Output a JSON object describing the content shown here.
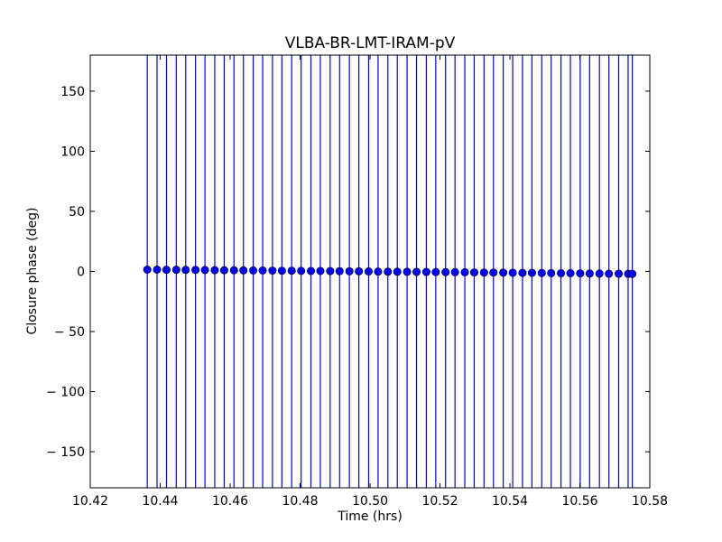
{
  "chart_data": {
    "type": "scatter",
    "title": "VLBA-BR-LMT-IRAM-pV",
    "xlabel": "Time (hrs)",
    "ylabel": "Closure phase (deg)",
    "xlim": [
      10.42,
      10.58
    ],
    "ylim": [
      -180,
      180
    ],
    "xticks": [
      10.42,
      10.44,
      10.46,
      10.48,
      10.5,
      10.52,
      10.54,
      10.56,
      10.58
    ],
    "xtick_labels": [
      "10.42",
      "10.44",
      "10.46",
      "10.48",
      "10.50",
      "10.52",
      "10.54",
      "10.56",
      "10.58"
    ],
    "yticks": [
      150,
      100,
      50,
      0,
      -50,
      -100,
      -150
    ],
    "ytick_labels": [
      "150",
      "100",
      "50",
      "0",
      "− 50",
      "− 100",
      "− 150"
    ],
    "grid": false,
    "marker_color": "#0000ff",
    "errorbar_color": "#0000ff",
    "error_extends_beyond_ylim": true,
    "x": [
      10.4363,
      10.4391,
      10.4418,
      10.4446,
      10.4473,
      10.4501,
      10.4528,
      10.4556,
      10.4583,
      10.4611,
      10.4638,
      10.4666,
      10.4693,
      10.4721,
      10.4748,
      10.4776,
      10.4803,
      10.4831,
      10.4858,
      10.4886,
      10.4913,
      10.4941,
      10.4968,
      10.4996,
      10.5023,
      10.5051,
      10.5078,
      10.5106,
      10.5133,
      10.5161,
      10.5188,
      10.5216,
      10.5243,
      10.5271,
      10.5298,
      10.5326,
      10.5353,
      10.5381,
      10.5408,
      10.5436,
      10.5463,
      10.5491,
      10.5518,
      10.5546,
      10.5573,
      10.5601,
      10.5628,
      10.5656,
      10.5683,
      10.5711,
      10.5738,
      10.575
    ],
    "y": [
      1.5,
      1.5,
      1.4,
      1.4,
      1.3,
      1.3,
      1.2,
      1.1,
      1.0,
      1.0,
      0.9,
      0.8,
      0.8,
      0.7,
      0.6,
      0.6,
      0.5,
      0.4,
      0.4,
      0.3,
      0.2,
      0.1,
      0.1,
      0.0,
      -0.1,
      -0.2,
      -0.2,
      -0.3,
      -0.4,
      -0.4,
      -0.5,
      -0.6,
      -0.6,
      -0.7,
      -0.8,
      -0.9,
      -0.9,
      -1.0,
      -1.1,
      -1.2,
      -1.2,
      -1.3,
      -1.4,
      -1.5,
      -1.5,
      -1.6,
      -1.7,
      -1.8,
      -1.9,
      -1.9,
      -2.0,
      -2.0
    ]
  }
}
